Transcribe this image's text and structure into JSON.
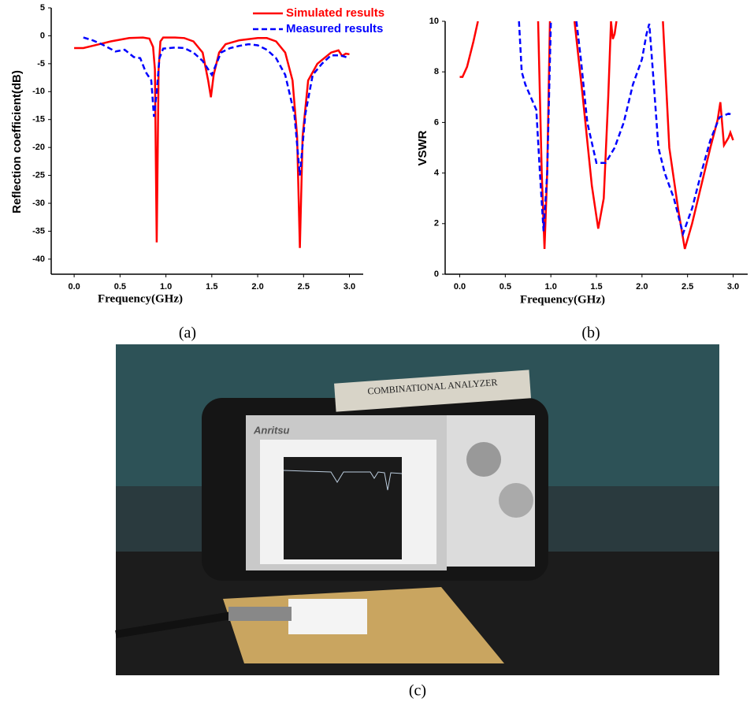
{
  "chart_data": [
    {
      "type": "line",
      "y_label": "Reflection coefficient(dB)",
      "x_label": "Frequency(GHz)",
      "xlim": [
        -0.25,
        3.15
      ],
      "ylim": [
        -42.7,
        5
      ],
      "xticks": [
        {
          "value": 0,
          "label": "0.0"
        },
        0.5,
        {
          "value": 1,
          "label": "1.0"
        },
        1.5,
        {
          "value": 2,
          "label": "2.0"
        },
        2.5,
        {
          "value": 3,
          "label": "3.0"
        }
      ],
      "yticks": [
        5,
        0,
        -5,
        -10,
        -15,
        -20,
        -25,
        -30,
        -35,
        -40
      ],
      "legend": "upper right",
      "series": [
        {
          "name": "Simulated results",
          "color": "#ff0000",
          "style": "solid",
          "x": [
            0,
            0.1,
            0.2,
            0.4,
            0.6,
            0.75,
            0.82,
            0.86,
            0.88,
            0.9,
            0.92,
            0.94,
            0.97,
            1.1,
            1.2,
            1.3,
            1.4,
            1.46,
            1.49,
            1.52,
            1.58,
            1.65,
            1.8,
            2.0,
            2.1,
            2.2,
            2.3,
            2.38,
            2.43,
            2.46,
            2.49,
            2.55,
            2.65,
            2.8,
            2.88,
            2.92,
            2.96,
            3.0
          ],
          "values": [
            -2.2,
            -2.2,
            -1.8,
            -1,
            -0.4,
            -0.3,
            -0.5,
            -2,
            -6,
            -37,
            -6,
            -1,
            -0.3,
            -0.3,
            -0.4,
            -1,
            -3,
            -8,
            -11,
            -7,
            -3,
            -1.5,
            -0.8,
            -0.4,
            -0.4,
            -1,
            -3,
            -8,
            -18,
            -38,
            -18,
            -8,
            -5,
            -3,
            -2.6,
            -3.6,
            -3.2,
            -3.3
          ]
        },
        {
          "name": "Measured results",
          "color": "#0000ff",
          "style": "dashed",
          "x": [
            0.1,
            0.2,
            0.3,
            0.45,
            0.55,
            0.65,
            0.72,
            0.78,
            0.84,
            0.87,
            0.9,
            0.93,
            0.97,
            1.1,
            1.2,
            1.3,
            1.4,
            1.5,
            1.55,
            1.6,
            1.7,
            1.8,
            1.9,
            2.0,
            2.1,
            2.2,
            2.3,
            2.4,
            2.46,
            2.52,
            2.6,
            2.7,
            2.8,
            2.9,
            3.0
          ],
          "values": [
            -0.3,
            -0.8,
            -1.5,
            -2.8,
            -2.5,
            -3.8,
            -4,
            -6.5,
            -8,
            -14.5,
            -10,
            -4,
            -2.3,
            -2.1,
            -2.2,
            -3,
            -4.5,
            -7,
            -5,
            -3,
            -2.2,
            -1.8,
            -1.5,
            -1.7,
            -2.5,
            -4,
            -7,
            -14,
            -25,
            -14,
            -7,
            -5,
            -3.5,
            -3.5,
            -4
          ]
        }
      ]
    },
    {
      "type": "line",
      "y_label": "VSWR",
      "x_label": "Frequency(GHz)",
      "xlim": [
        -0.16,
        3.16
      ],
      "ylim": [
        0,
        10
      ],
      "xticks": [
        {
          "value": 0,
          "label": "0.0"
        },
        0.5,
        {
          "value": 1,
          "label": "1.0"
        },
        1.5,
        {
          "value": 2,
          "label": "2.0"
        },
        2.5,
        {
          "value": 3,
          "label": "3.0"
        }
      ],
      "yticks": [
        0,
        2,
        4,
        6,
        8,
        10
      ],
      "series": [
        {
          "color": "#ff0000",
          "style": "solid",
          "x": [
            0,
            0.03,
            0.08,
            0.15,
            0.2,
            0.5,
            0.86,
            0.9,
            0.93,
            0.96,
            0.99,
            1.1,
            1.26,
            1.35,
            1.45,
            1.52,
            1.58,
            1.63,
            1.66,
            1.68,
            1.7,
            1.72,
            2.0,
            2.23,
            2.3,
            2.4,
            2.47,
            2.55,
            2.65,
            2.75,
            2.83,
            2.86,
            2.9,
            2.95,
            2.97,
            3.0
          ],
          "values": [
            7.8,
            7.8,
            8.2,
            9.2,
            10,
            null,
            10,
            4,
            1,
            4,
            10,
            null,
            10,
            7,
            3.5,
            1.8,
            3,
            7,
            10,
            9.3,
            9.5,
            10,
            null,
            10,
            5,
            2.5,
            1,
            2,
            3.5,
            5,
            6.1,
            6.8,
            5.1,
            5.4,
            5.6,
            5.3
          ]
        },
        {
          "color": "#0000ff",
          "style": "dashed",
          "x": [
            0.65,
            0.68,
            0.72,
            0.78,
            0.84,
            0.88,
            0.92,
            0.96,
            1.0,
            1.1,
            1.28,
            1.33,
            1.4,
            1.45,
            1.5,
            1.6,
            1.7,
            1.8,
            1.9,
            2.0,
            2.05,
            2.08,
            2.12,
            2.18,
            2.25,
            2.35,
            2.45,
            2.55,
            2.65,
            2.75,
            2.85,
            2.95,
            3.0
          ],
          "values": [
            10,
            8,
            7.5,
            7,
            6.5,
            4,
            1.7,
            4,
            10,
            null,
            10,
            8.5,
            6,
            5.2,
            4.4,
            4.4,
            5,
            6,
            7.5,
            8.5,
            9.5,
            9.9,
            8,
            5,
            4,
            3,
            1.6,
            2.6,
            4,
            5.3,
            6.2,
            6.35,
            6.3
          ]
        }
      ]
    }
  ],
  "captions": [
    "(a)",
    "(b)",
    "(c)"
  ],
  "photo": {
    "sticker": "COMBINATIONAL ANALYZER",
    "brand": "Anritsu"
  }
}
